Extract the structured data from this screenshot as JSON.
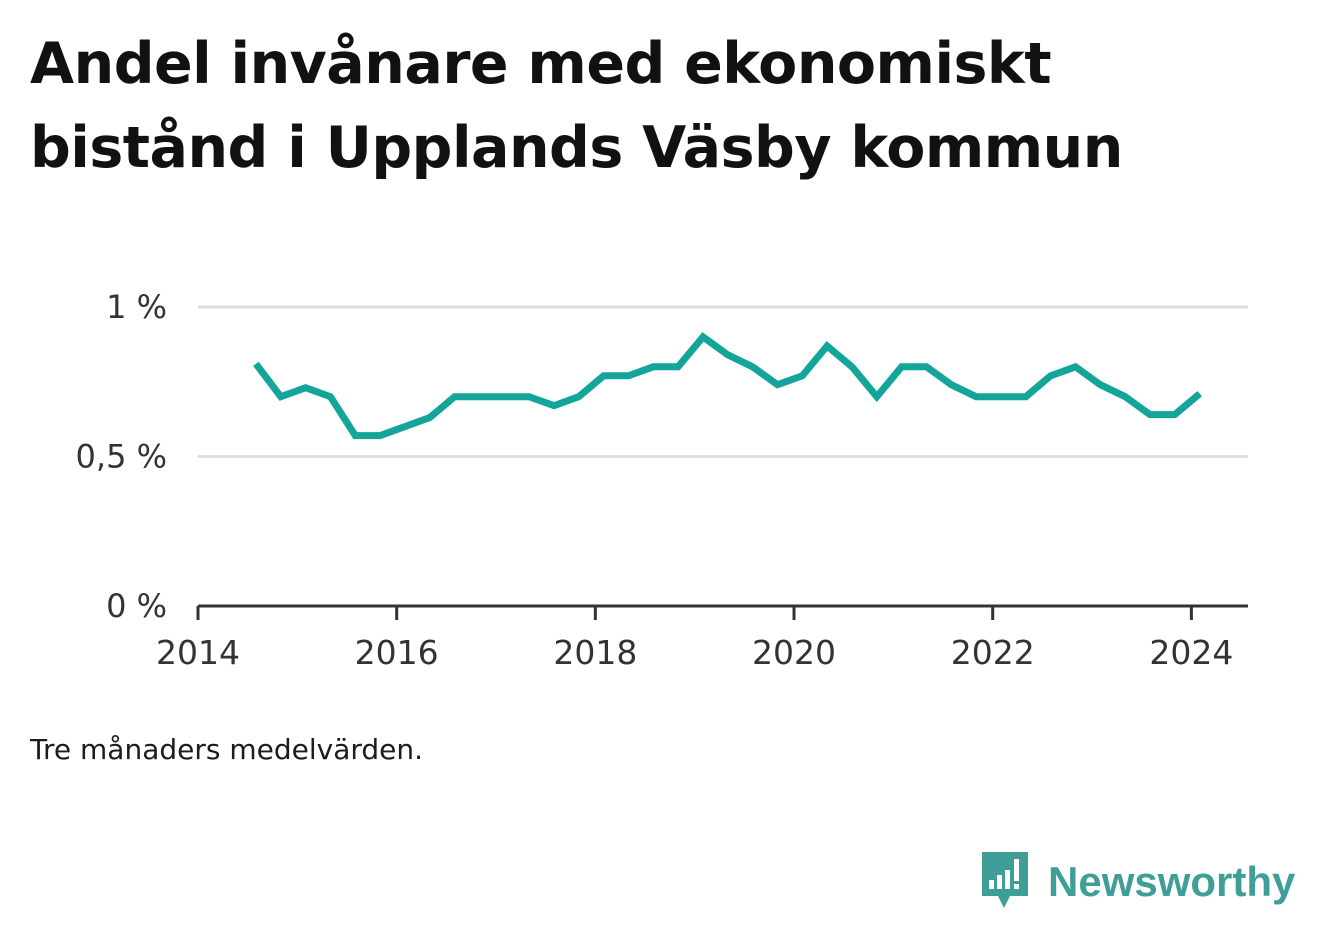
{
  "title": "Andel invånare med ekonomiskt bistånd i Upplands Väsby kommun",
  "note": "Tre månaders medelvärden.",
  "brand": {
    "name": "Newsworthy",
    "icon": "newsworthy-logo-icon",
    "color": "#3f9e98"
  },
  "colors": {
    "line": "#13a49a",
    "grid": "#dddddd",
    "axis": "#333333",
    "text": "#333333"
  },
  "chart_data": {
    "type": "line",
    "title": "Andel invånare med ekonomiskt bistånd i Upplands Väsby kommun",
    "xlabel": "",
    "ylabel": "",
    "xlim": [
      2014,
      2024.57
    ],
    "ylim": [
      0,
      1
    ],
    "grid": true,
    "x_ticks": [
      2014,
      2016,
      2018,
      2020,
      2022,
      2024
    ],
    "y_ticks": [
      {
        "value": 0,
        "label": "0 %"
      },
      {
        "value": 0.5,
        "label": "0,5 %"
      },
      {
        "value": 1,
        "label": "1 %"
      }
    ],
    "series": [
      {
        "x": [
          "2014-08",
          "2014-11",
          "2015-02",
          "2015-05",
          "2015-08",
          "2015-11",
          "2016-02",
          "2016-05",
          "2016-08",
          "2016-11",
          "2017-02",
          "2017-05",
          "2017-08",
          "2017-11",
          "2018-02",
          "2018-05",
          "2018-08",
          "2018-11",
          "2019-02",
          "2019-05",
          "2019-08",
          "2019-11",
          "2020-02",
          "2020-05",
          "2020-08",
          "2020-11",
          "2021-02",
          "2021-05",
          "2021-08",
          "2021-11",
          "2022-02",
          "2022-05",
          "2022-08",
          "2022-11",
          "2023-02",
          "2023-05",
          "2023-08",
          "2023-11",
          "2024-02"
        ],
        "values": [
          0.81,
          0.7,
          0.73,
          0.7,
          0.57,
          0.57,
          0.6,
          0.63,
          0.7,
          0.7,
          0.7,
          0.7,
          0.67,
          0.7,
          0.77,
          0.77,
          0.8,
          0.8,
          0.9,
          0.84,
          0.8,
          0.74,
          0.77,
          0.87,
          0.8,
          0.7,
          0.8,
          0.8,
          0.74,
          0.7,
          0.7,
          0.7,
          0.77,
          0.8,
          0.74,
          0.7,
          0.64,
          0.64,
          0.71
        ]
      }
    ]
  }
}
